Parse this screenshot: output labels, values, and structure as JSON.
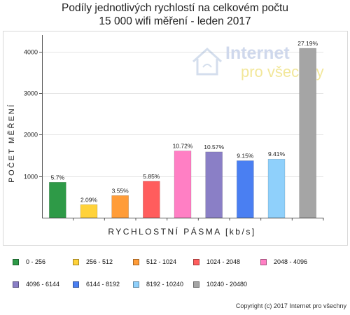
{
  "title_line1": "Podíly jednotlivých rychlostí na celkovém počtu",
  "title_line2": "15 000 wifi měření - leden 2017",
  "watermark": {
    "line1": "Internet",
    "line2": "pro všechny"
  },
  "copyright": "Copyright (c) 2017 Internet pro všechny",
  "chart_data": {
    "type": "bar",
    "categories": [
      "0 - 256",
      "256 - 512",
      "512 - 1024",
      "1024 - 2048",
      "2048 - 4096",
      "4096 - 6144",
      "6144 - 8192",
      "8192 - 10240",
      "10240 - 20480"
    ],
    "values": [
      855,
      314,
      533,
      878,
      1608,
      1586,
      1373,
      1412,
      4079
    ],
    "data_labels": [
      "5.7%",
      "2.09%",
      "3.55%",
      "5.85%",
      "10.72%",
      "10.57%",
      "9.15%",
      "9.41%",
      "27.19%"
    ],
    "colors": [
      "#2e9a47",
      "#ffd23a",
      "#ff9c38",
      "#ff5d5d",
      "#ff7fc4",
      "#8a7fc6",
      "#4a7ff2",
      "#8fd0fb",
      "#a5a5a5"
    ],
    "xlabel": "RYCHLOSTNÍ PÁSMA [kb/s]",
    "ylabel": "POČET MĚŘENÍ",
    "yticks": [
      1000,
      2000,
      3000,
      4000
    ],
    "ylim": [
      0,
      4400
    ],
    "grid": true,
    "legend_position": "bottom"
  }
}
